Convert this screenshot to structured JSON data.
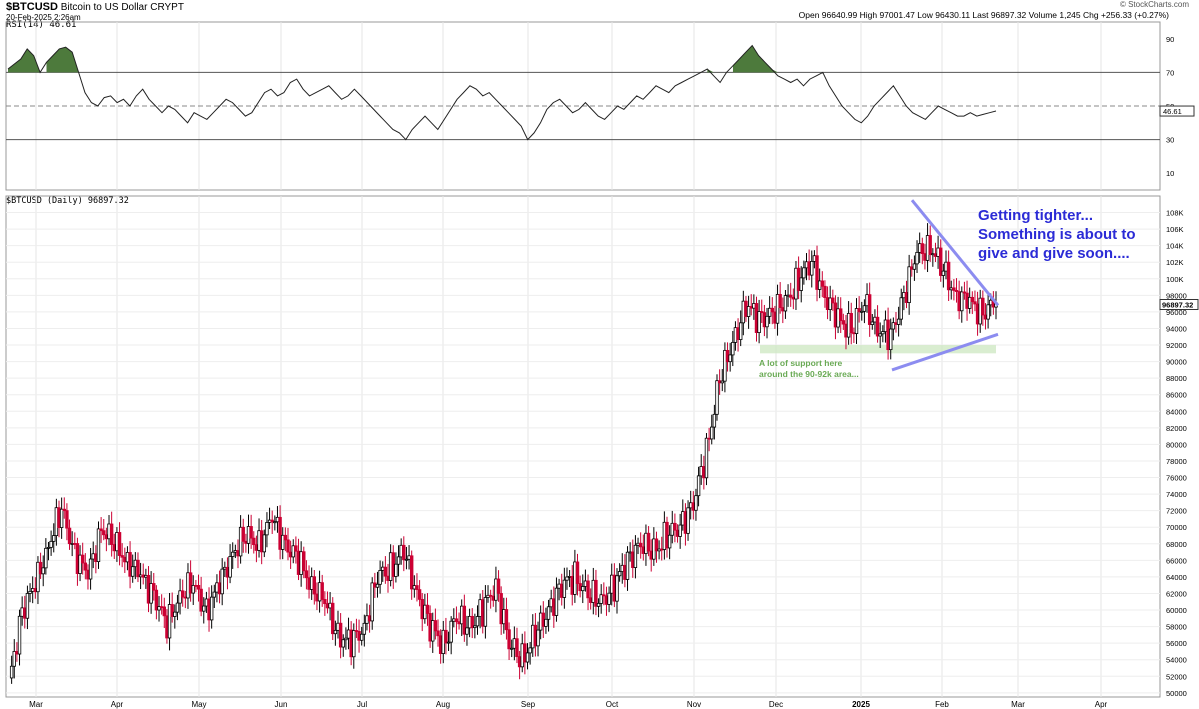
{
  "header": {
    "symbol": "$BTCUSD",
    "name": "Bitcoin to US Dollar",
    "exchange": "CRYPT",
    "date": "20-Feb-2025 2:26am",
    "brand": "© StockCharts.com",
    "ohlc_line": "Open 96640.99  High 97001.47  Low 96430.11  Last 96897.32  Volume 1,245  Chg +256.33 (+0.27%)"
  },
  "rsi_panel": {
    "label": "RSI(14) 46.61",
    "last_value_tag": "46.61",
    "y_ticks": [
      "90",
      "70",
      "50",
      "30",
      "10"
    ]
  },
  "price_panel": {
    "label": "$BTCUSD (Daily) 96897.32",
    "last_price_tag": "96897.32",
    "y_ticks": [
      "108K",
      "106K",
      "104K",
      "102K",
      "100K",
      "98000",
      "96000",
      "94000",
      "92000",
      "90000",
      "88000",
      "86000",
      "84000",
      "82000",
      "80000",
      "78000",
      "76000",
      "74000",
      "72000",
      "70000",
      "68000",
      "66000",
      "64000",
      "62000",
      "60000",
      "58000",
      "56000",
      "54000",
      "52000",
      "50000"
    ]
  },
  "x_axis": {
    "labels": [
      "Mar",
      "Apr",
      "May",
      "Jun",
      "Jul",
      "Aug",
      "Sep",
      "Oct",
      "Nov",
      "Dec",
      "2025",
      "Feb",
      "Mar",
      "Apr"
    ]
  },
  "annotations": {
    "blue_note": "Getting tighter...\nSomething is about to\ngive and give soon....",
    "green_note": "A lot of support here\naround the 90-92k area..."
  },
  "colors": {
    "up_candle": "#000000",
    "down_candle": "#cc0033",
    "trendline": "#8c8cf0",
    "support_zone": "#cfe8c4",
    "rsi_fill": "#4d7a3c"
  },
  "chart_data": [
    {
      "type": "line",
      "title": "RSI(14) 46.61",
      "x_labels": [
        "Mar",
        "Apr",
        "May",
        "Jun",
        "Jul",
        "Aug",
        "Sep",
        "Oct",
        "Nov",
        "Dec",
        "2025",
        "Feb",
        "Mar",
        "Apr"
      ],
      "ylim": [
        0,
        100
      ],
      "reference_lines": [
        70,
        50,
        30
      ],
      "series": [
        {
          "values": [
            72,
            75,
            78,
            84,
            80,
            70,
            76,
            80,
            84,
            85,
            82,
            70,
            58,
            52,
            50,
            55,
            56,
            52,
            54,
            50,
            56,
            60,
            54,
            50,
            46,
            50,
            48,
            44,
            40,
            46,
            44,
            42,
            46,
            50,
            54,
            52,
            48,
            44,
            46,
            52,
            58,
            60,
            56,
            58,
            64,
            66,
            60,
            56,
            58,
            60,
            62,
            58,
            54,
            56,
            60,
            56,
            52,
            48,
            44,
            40,
            36,
            34,
            30,
            36,
            40,
            44,
            40,
            36,
            42,
            48,
            54,
            58,
            62,
            60,
            56,
            58,
            54,
            50,
            46,
            42,
            38,
            30,
            34,
            40,
            48,
            52,
            54,
            50,
            46,
            48,
            52,
            48,
            44,
            42,
            46,
            50,
            48,
            52,
            56,
            54,
            58,
            62,
            60,
            58,
            62,
            64,
            66,
            68,
            70,
            72,
            68,
            64,
            70,
            74,
            78,
            82,
            86,
            80,
            76,
            72,
            68,
            66,
            64,
            66,
            62,
            66,
            68,
            70,
            62,
            56,
            50,
            46,
            42,
            40,
            44,
            50,
            54,
            58,
            62,
            56,
            50,
            46,
            44,
            42,
            46,
            50,
            48,
            46,
            44,
            44,
            46,
            44,
            45,
            46,
            47
          ]
        }
      ]
    },
    {
      "type": "candlestick",
      "title": "$BTCUSD (Daily) 96897.32",
      "x_labels": [
        "Mar",
        "Apr",
        "May",
        "Jun",
        "Jul",
        "Aug",
        "Sep",
        "Oct",
        "Nov",
        "Dec",
        "2025",
        "Feb",
        "Mar",
        "Apr"
      ],
      "ylim": [
        49500,
        110000
      ],
      "weekly_close": [
        51000,
        60000,
        63000,
        68000,
        72000,
        67000,
        64000,
        70000,
        68000,
        66000,
        64000,
        62000,
        58000,
        62000,
        63000,
        60000,
        63000,
        67000,
        69000,
        68000,
        71000,
        68000,
        66000,
        63000,
        61000,
        57000,
        56000,
        58000,
        64000,
        65000,
        67000,
        62000,
        58000,
        56000,
        59000,
        58000,
        60000,
        63000,
        56000,
        54000,
        57000,
        60000,
        63000,
        64000,
        62000,
        61000,
        63000,
        66000,
        68000,
        67000,
        69000,
        70000,
        73000,
        79000,
        88000,
        92000,
        97000,
        95000,
        96000,
        97000,
        100000,
        102000,
        98000,
        95000,
        94000,
        97000,
        94000,
        93000,
        98000,
        103000,
        104000,
        101000,
        98000,
        97000,
        96000,
        97000
      ],
      "support_zone": [
        91000,
        92000
      ],
      "last": 96897.32
    }
  ]
}
